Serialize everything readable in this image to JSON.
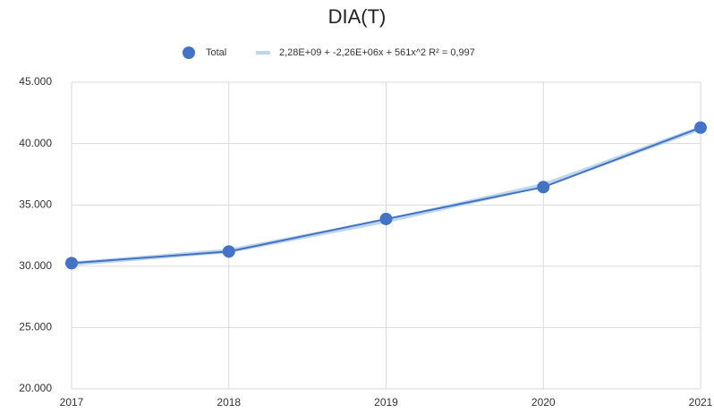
{
  "chart_data": {
    "type": "scatter",
    "title": "DIA(T)",
    "x": [
      2017,
      2018,
      2019,
      2020,
      2021
    ],
    "series": [
      {
        "name": "Total",
        "color": "#4472c4",
        "values": [
          30250,
          31200,
          33850,
          36450,
          41300
        ]
      },
      {
        "name": "2,28E+09 + -2,26E+06x + 561x^2 R² = 0,997",
        "color": "#bdd7ee",
        "values": [
          30200,
          31250,
          33700,
          36600,
          41250
        ]
      }
    ],
    "xlim": [
      2017,
      2021
    ],
    "xticks": [
      2017,
      2018,
      2019,
      2020,
      2021
    ],
    "ylim": [
      20000,
      45000
    ],
    "yticks": [
      {
        "value": 20000,
        "label": "20.000"
      },
      {
        "value": 25000,
        "label": "25.000"
      },
      {
        "value": 30000,
        "label": "30.000"
      },
      {
        "value": 35000,
        "label": "35.000"
      },
      {
        "value": 40000,
        "label": "40.000"
      },
      {
        "value": 45000,
        "label": "45.000"
      }
    ],
    "grid": true
  }
}
